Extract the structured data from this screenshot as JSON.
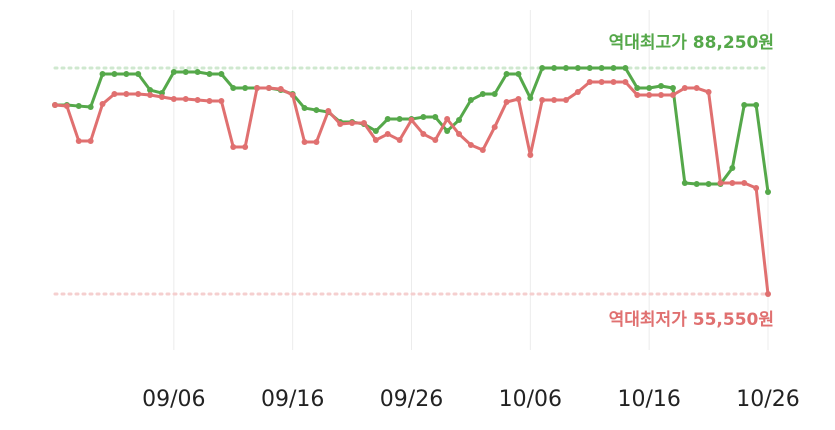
{
  "chart_data": {
    "type": "line",
    "categories": [
      null,
      null,
      null,
      null,
      null,
      null,
      null,
      null,
      null,
      null,
      "09/06",
      null,
      null,
      null,
      null,
      null,
      null,
      null,
      null,
      null,
      "09/16",
      null,
      null,
      null,
      null,
      null,
      null,
      null,
      null,
      null,
      "09/26",
      null,
      null,
      null,
      null,
      null,
      null,
      null,
      null,
      null,
      "10/06",
      null,
      null,
      null,
      null,
      null,
      null,
      null,
      null,
      null,
      "10/16",
      null,
      null,
      null,
      null,
      null,
      null,
      null,
      null,
      null,
      "10/26"
    ],
    "series": [
      {
        "color": "#55a84a",
        "values": [
          82900,
          82900,
          82750,
          82610,
          87385,
          87385,
          87385,
          87385,
          85070,
          84635,
          87675,
          87675,
          87675,
          87385,
          87385,
          85360,
          85360,
          85360,
          85360,
          85070,
          84490,
          82460,
          82170,
          81880,
          80440,
          80440,
          80150,
          79140,
          80870,
          80870,
          80870,
          81160,
          81160,
          79140,
          80730,
          83620,
          84490,
          84490,
          87385,
          87385,
          83910,
          88250,
          88250,
          88250,
          88250,
          88250,
          88250,
          88250,
          88250,
          85360,
          85360,
          85650,
          85360,
          71610,
          71470,
          71470,
          71470,
          73780,
          82900,
          82900,
          70310
        ]
      },
      {
        "color": "#e07070",
        "values": [
          82900,
          82750,
          77690,
          77690,
          83040,
          84490,
          84490,
          84490,
          84350,
          84060,
          83770,
          83770,
          83620,
          83480,
          83480,
          76820,
          76820,
          85360,
          85360,
          85210,
          84350,
          77540,
          77540,
          82030,
          80150,
          80290,
          80290,
          77830,
          78700,
          77830,
          80730,
          78700,
          77830,
          80870,
          78700,
          77110,
          76390,
          79710,
          83330,
          83770,
          75660,
          83620,
          83620,
          83620,
          84780,
          86230,
          86230,
          86230,
          86230,
          84350,
          84350,
          84350,
          84350,
          85360,
          85360,
          84780,
          71610,
          71610,
          71610,
          70890,
          55550
        ]
      }
    ],
    "annotations": [
      {
        "text": "역대최고가 88,250원",
        "value": 88250,
        "color": "#55a84a",
        "line_color": "#cfe8cf"
      },
      {
        "text": "역대최저가 55,550원",
        "value": 55550,
        "color": "#e07070",
        "line_color": "#f5cfcf"
      }
    ],
    "ylim": [
      47450,
      96650
    ],
    "grid": true
  }
}
